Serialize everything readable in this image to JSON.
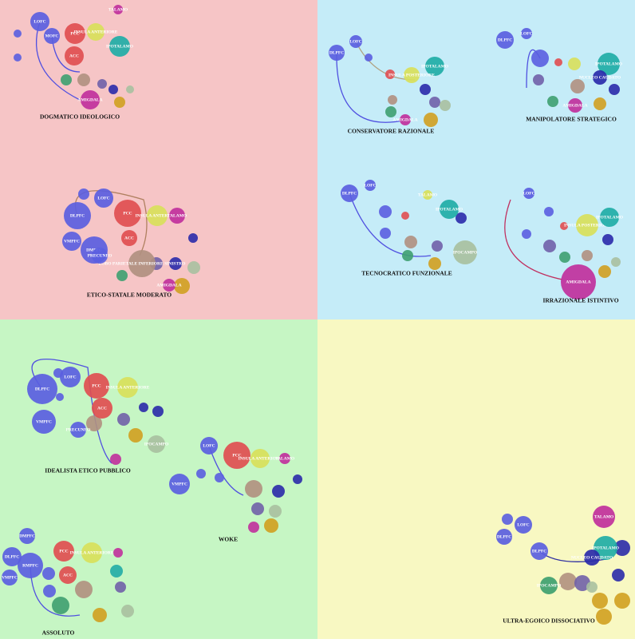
{
  "panels": [
    {
      "title": "DOGMATICO IDEOLOGICO",
      "nodes": [
        "LOFC",
        "MOFC",
        "PCC",
        "ACC",
        "INSULA ANTERIORE",
        "TALAMO",
        "IPOTALAMO",
        "AMIGDALA"
      ]
    },
    {
      "title": "ETICO-STATALE MODERATO",
      "nodes": [
        "DLPFC",
        "DMPFC",
        "VMPFC",
        "LOFC",
        "PCC",
        "ACC",
        "INSULA ANTERIORE",
        "TALAMO",
        "LOBO PARIETALE INFERIORE SINISTRO",
        "AMIGDALA",
        "PRECUNEO"
      ]
    },
    {
      "title": "CONSERVATORE RAZIONALE",
      "nodes": [
        "DLPFC",
        "LOFC",
        "IPOTALAMO",
        "INSULA POSTERIORE",
        "AMIGDALA"
      ]
    },
    {
      "title": "MANIPOLATORE STRATEGICO",
      "nodes": [
        "DLPFC",
        "LOFC",
        "IPOTALAMO",
        "NUCLEO CAUDATO",
        "AMIGDALA"
      ]
    },
    {
      "title": "TECNOCRATICO FUNZIONALE",
      "nodes": [
        "DLPFC",
        "LOFC",
        "TALAMO",
        "IPOTALAMO",
        "IPOCAMPO"
      ]
    },
    {
      "title": "IRRAZIONALE ISTINTIVO",
      "nodes": [
        "LOFC",
        "INSULA POSTERIORE",
        "IPOTALAMO",
        "AMIGDALA"
      ]
    },
    {
      "title": "IDEALISTA ETICO PUBBLICO",
      "nodes": [
        "DLPFC",
        "VMPFC",
        "LOFC",
        "PCC",
        "ACC",
        "INSULA ANTERIORE",
        "PRECUNEO",
        "IPOCAMPO"
      ]
    },
    {
      "title": "WOKE",
      "nodes": [
        "LOFC",
        "PCC",
        "INSULA ANTERIORE",
        "VMPFC",
        "TALAMO"
      ]
    },
    {
      "title": "ASSOLUTO",
      "nodes": [
        "DLPFC",
        "VMPFC",
        "RMPFC",
        "PCC",
        "ACC",
        "INSULA ANTERIORE",
        "DMPFC"
      ]
    },
    {
      "title": "ULTRA-EGOICO DISSOCIATIVO",
      "nodes": [
        "DLPFC",
        "LOFC",
        "DLPFC",
        "TALAMO",
        "IPOTALAMO",
        "NUCLEO CAUDATO",
        "IPOCAMPO"
      ]
    }
  ]
}
